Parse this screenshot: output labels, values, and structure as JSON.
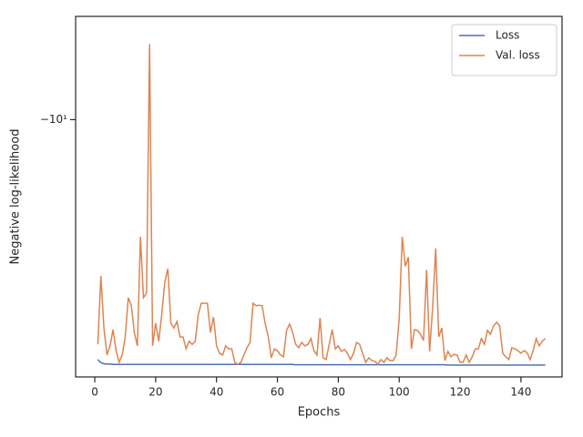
{
  "chart_data": {
    "type": "line",
    "xlabel": "Epochs",
    "ylabel": "Negative log-likelihood",
    "yscale": "symlog",
    "grid": false,
    "legend": "upper right",
    "xlim": [
      -6.3,
      153.5
    ],
    "xticks": [
      0,
      20,
      40,
      60,
      80,
      100,
      120,
      140
    ],
    "ylim": [
      -51,
      -5.2
    ],
    "yticks": [
      {
        "value": -10,
        "label": "−10¹"
      }
    ],
    "x": [
      1,
      2,
      3,
      4,
      5,
      6,
      7,
      8,
      9,
      10,
      11,
      12,
      13,
      14,
      15,
      16,
      17,
      18,
      19,
      20,
      21,
      22,
      23,
      24,
      25,
      26,
      27,
      28,
      29,
      30,
      31,
      32,
      33,
      34,
      35,
      36,
      37,
      38,
      39,
      40,
      41,
      42,
      43,
      44,
      45,
      46,
      47,
      48,
      49,
      50,
      51,
      52,
      53,
      54,
      55,
      56,
      57,
      58,
      59,
      60,
      61,
      62,
      63,
      64,
      65,
      66,
      67,
      68,
      69,
      70,
      71,
      72,
      73,
      74,
      75,
      76,
      77,
      78,
      79,
      80,
      81,
      82,
      83,
      84,
      85,
      86,
      87,
      88,
      89,
      90,
      91,
      92,
      93,
      94,
      95,
      96,
      97,
      98,
      99,
      100,
      101,
      102,
      103,
      104,
      105,
      106,
      107,
      108,
      109,
      110,
      111,
      112,
      113,
      114,
      115,
      116,
      117,
      118,
      119,
      120,
      121,
      122,
      123,
      124,
      125,
      126,
      127,
      128,
      129,
      130,
      131,
      132,
      133,
      134,
      135,
      136,
      137,
      138,
      139,
      140,
      141,
      142,
      143,
      144,
      145,
      146,
      147,
      148
    ],
    "series": [
      {
        "name": "Loss",
        "color": "#4c72b0",
        "values": [
          -45.7,
          -46.6,
          -46.9,
          -47.0,
          -47.0,
          -47.1,
          -47.1,
          -47.1,
          -47.1,
          -47.1,
          -47.1,
          -47.1,
          -47.1,
          -47.1,
          -47.1,
          -47.1,
          -47.1,
          -47.1,
          -47.1,
          -47.1,
          -47.1,
          -47.1,
          -47.1,
          -47.1,
          -47.1,
          -47.1,
          -47.1,
          -47.1,
          -47.1,
          -47.1,
          -47.1,
          -47.1,
          -47.1,
          -47.1,
          -47.1,
          -47.1,
          -47.1,
          -47.1,
          -47.1,
          -47.1,
          -47.1,
          -47.1,
          -47.1,
          -47.1,
          -47.1,
          -47.1,
          -47.1,
          -47.1,
          -47.1,
          -47.1,
          -47.1,
          -47.1,
          -47.1,
          -47.1,
          -47.1,
          -47.1,
          -47.1,
          -47.1,
          -47.1,
          -47.1,
          -47.1,
          -47.1,
          -47.1,
          -47.1,
          -47.1,
          -47.2,
          -47.2,
          -47.2,
          -47.2,
          -47.2,
          -47.2,
          -47.2,
          -47.2,
          -47.2,
          -47.2,
          -47.2,
          -47.2,
          -47.2,
          -47.2,
          -47.2,
          -47.2,
          -47.2,
          -47.2,
          -47.2,
          -47.2,
          -47.2,
          -47.2,
          -47.2,
          -47.2,
          -47.2,
          -47.2,
          -47.2,
          -47.2,
          -47.2,
          -47.2,
          -47.2,
          -47.2,
          -47.2,
          -47.2,
          -47.2,
          -47.2,
          -47.2,
          -47.2,
          -47.2,
          -47.2,
          -47.2,
          -47.2,
          -47.2,
          -47.2,
          -47.2,
          -47.2,
          -47.2,
          -47.2,
          -47.2,
          -47.2,
          -47.3,
          -47.3,
          -47.3,
          -47.3,
          -47.3,
          -47.3,
          -47.3,
          -47.3,
          -47.3,
          -47.3,
          -47.3,
          -47.3,
          -47.3,
          -47.3,
          -47.3,
          -47.3,
          -47.3,
          -47.3,
          -47.3,
          -47.3,
          -47.3,
          -47.3,
          -47.3,
          -47.3,
          -47.3,
          -47.3,
          -47.3,
          -47.3,
          -47.3,
          -47.3,
          -47.3,
          -47.3,
          -47.3
        ]
      },
      {
        "name": "Val. loss",
        "color": "#dd8452",
        "values": [
          -41.5,
          -26.9,
          -37.4,
          -44.4,
          -41.9,
          -37.8,
          -43.2,
          -46.5,
          -44.4,
          -39.6,
          -30.9,
          -32.4,
          -38.5,
          -41.9,
          -21.0,
          -30.9,
          -30.0,
          -6.2,
          -41.9,
          -36.3,
          -40.7,
          -34.3,
          -28.0,
          -25.7,
          -36.3,
          -37.4,
          -35.9,
          -39.6,
          -39.6,
          -42.7,
          -40.7,
          -41.5,
          -40.7,
          -34.3,
          -32.0,
          -32.0,
          -32.0,
          -38.5,
          -34.9,
          -41.9,
          -43.9,
          -44.4,
          -41.9,
          -42.7,
          -42.7,
          -46.5,
          -47.1,
          -46.5,
          -44.4,
          -42.4,
          -41.0,
          -32.0,
          -32.5,
          -32.4,
          -32.5,
          -36.5,
          -39.6,
          -45.2,
          -42.7,
          -43.2,
          -44.4,
          -44.9,
          -38.0,
          -36.5,
          -38.5,
          -41.5,
          -42.4,
          -41.0,
          -41.9,
          -41.5,
          -40.0,
          -43.2,
          -44.4,
          -35.1,
          -45.2,
          -45.7,
          -41.5,
          -37.8,
          -42.7,
          -41.9,
          -43.4,
          -42.9,
          -43.9,
          -45.7,
          -43.9,
          -41.0,
          -41.5,
          -43.9,
          -46.5,
          -45.2,
          -46.0,
          -46.2,
          -47.1,
          -45.7,
          -46.5,
          -45.2,
          -46.0,
          -46.0,
          -44.4,
          -35.3,
          -21.0,
          -25.3,
          -23.9,
          -42.7,
          -37.8,
          -38.0,
          -38.9,
          -40.5,
          -25.9,
          -43.4,
          -32.7,
          -22.6,
          -39.6,
          -37.4,
          -46.0,
          -43.4,
          -44.9,
          -44.2,
          -44.4,
          -46.5,
          -46.5,
          -44.4,
          -46.5,
          -44.9,
          -42.7,
          -42.7,
          -40.0,
          -41.5,
          -38.0,
          -38.9,
          -36.9,
          -36.1,
          -36.9,
          -43.9,
          -44.9,
          -45.7,
          -42.4,
          -42.7,
          -43.2,
          -43.9,
          -43.2,
          -43.7,
          -45.7,
          -43.2,
          -40.0,
          -41.9,
          -40.7,
          -40.0
        ]
      }
    ]
  }
}
